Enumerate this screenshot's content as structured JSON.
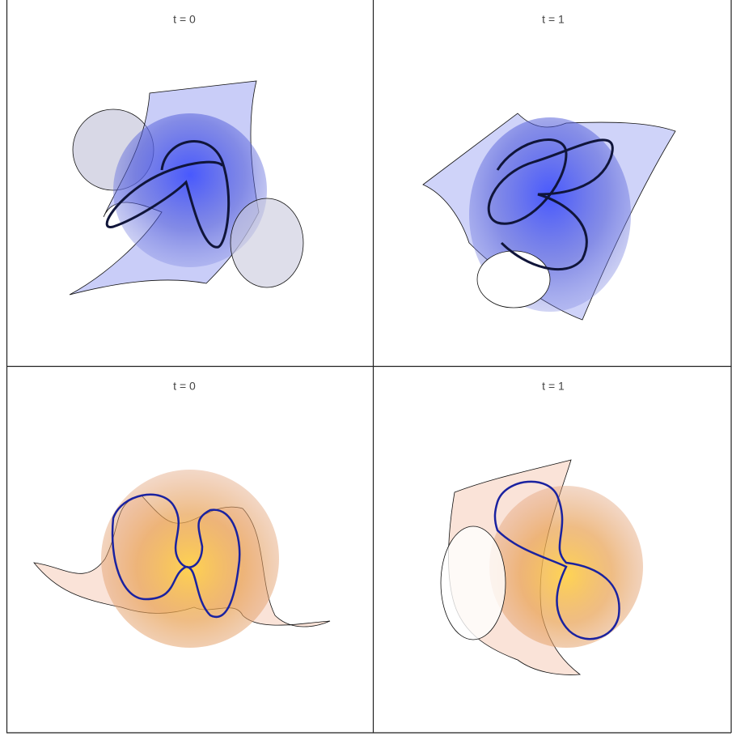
{
  "panels": [
    {
      "title": "t = 0"
    },
    {
      "title": "t = 1"
    },
    {
      "title": "t = 0"
    },
    {
      "title": "t = 1"
    }
  ]
}
